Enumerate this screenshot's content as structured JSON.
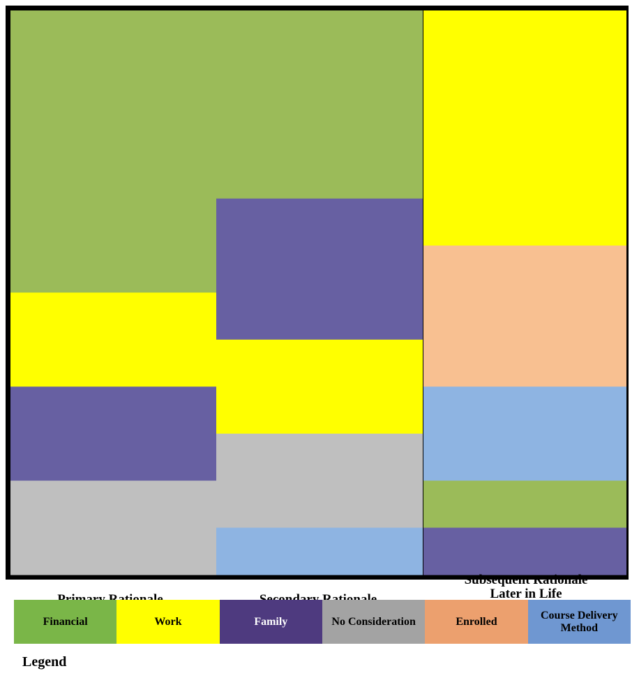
{
  "chart_data": {
    "type": "treemap-column-segments",
    "columns": [
      {
        "label_lines": [
          "Primary Rationale"
        ],
        "segments": [
          {
            "category": "Financial",
            "value": 30
          },
          {
            "category": "Work",
            "value": 10
          },
          {
            "category": "Family",
            "value": 10
          },
          {
            "category": "No Consideration",
            "value": 10
          }
        ]
      },
      {
        "label_lines": [
          "Secondary Rationale"
        ],
        "segments": [
          {
            "category": "Financial",
            "value": 20
          },
          {
            "category": "Family",
            "value": 15
          },
          {
            "category": "Work",
            "value": 10
          },
          {
            "category": "No Consideration",
            "value": 10
          },
          {
            "category": "Course Delivery Method",
            "value": 5
          }
        ]
      },
      {
        "label_lines": [
          "Subsequent Rationale",
          "Later in Life"
        ],
        "segments": [
          {
            "category": "Work",
            "value": 25
          },
          {
            "category": "Enrolled",
            "value": 15
          },
          {
            "category": "Course Delivery Method",
            "value": 10
          },
          {
            "category": "Financial",
            "value": 5
          },
          {
            "category": "Family",
            "value": 5
          }
        ]
      }
    ],
    "block_colors": {
      "Financial": "#9bbb59",
      "Work": "#ffff00",
      "Family": "#6760a2",
      "No Consideration": "#bfbfbf",
      "Enrolled": "#f8c091",
      "Course Delivery Method": "#8eb4e2"
    }
  },
  "legend": {
    "title": "Legend",
    "items": [
      {
        "label": "Financial",
        "color": "#7ab648",
        "text_color": "#000000"
      },
      {
        "label": "Work",
        "color": "#ffff00",
        "text_color": "#000000"
      },
      {
        "label": "Family",
        "color": "#4e3a7f",
        "text_color": "#ffffff"
      },
      {
        "label": "No Consideration",
        "color": "#a3a3a3",
        "text_color": "#000000"
      },
      {
        "label": "Enrolled",
        "color": "#eca06e",
        "text_color": "#000000"
      },
      {
        "label": "Course Delivery Method",
        "color": "#6f97d1",
        "text_color": "#000000"
      }
    ]
  }
}
